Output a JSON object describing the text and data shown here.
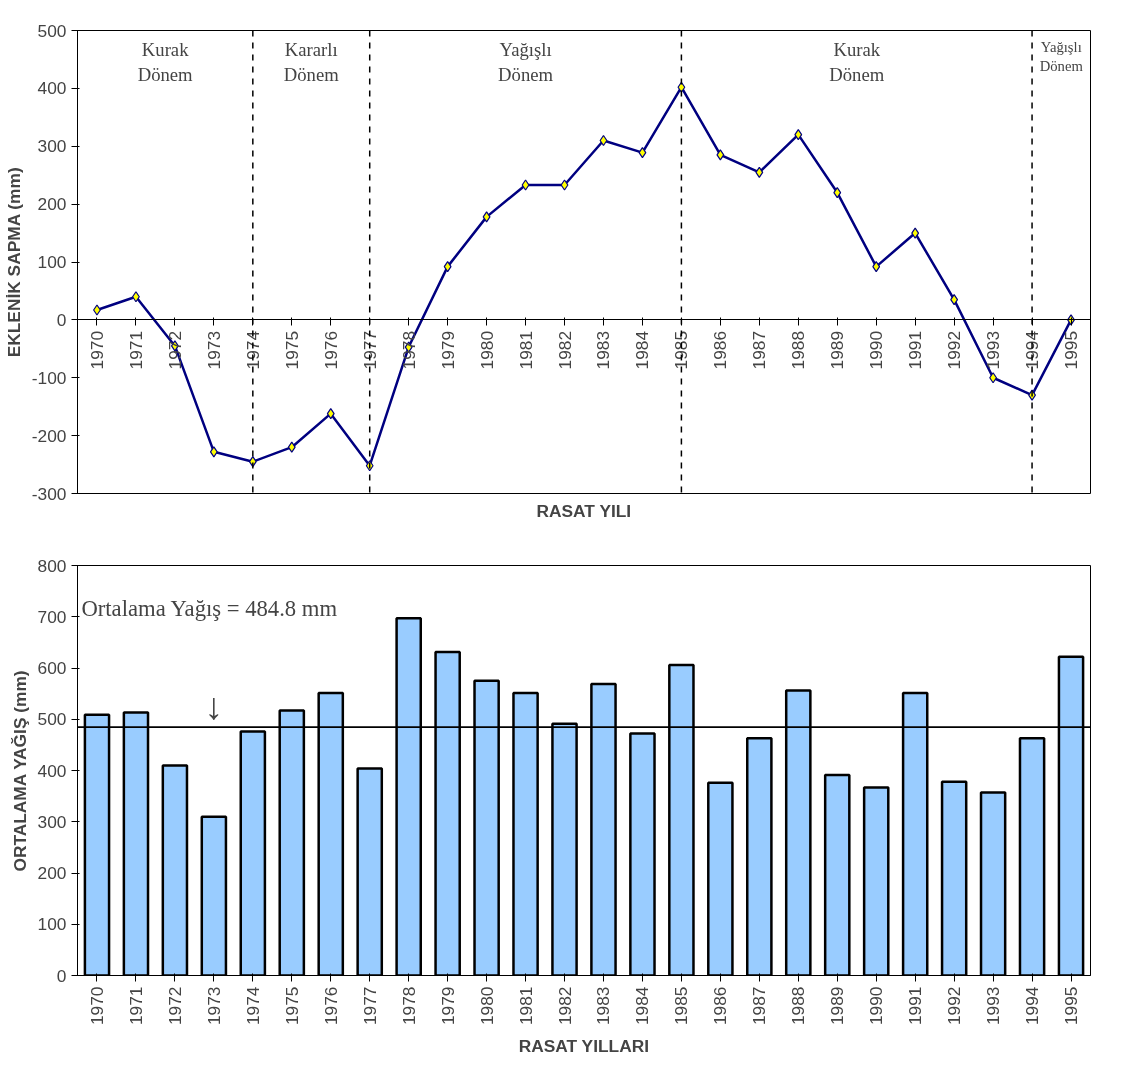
{
  "chart_data": [
    {
      "type": "line",
      "xlabel": "RASAT YILI",
      "ylabel": "EKLENİK SAPMA (mm)",
      "categories": [
        "1970",
        "1971",
        "1972",
        "1973",
        "1974",
        "1975",
        "1976",
        "1977",
        "1978",
        "1979",
        "1980",
        "1981",
        "1982",
        "1983",
        "1984",
        "1985",
        "1986",
        "1987",
        "1988",
        "1989",
        "1990",
        "1991",
        "1992",
        "1993",
        "1994",
        "1995"
      ],
      "series": [
        {
          "color": "#000080",
          "values": [
            17,
            40,
            -45,
            -228,
            -245,
            -220,
            -162,
            -252,
            -47,
            92,
            178,
            233,
            233,
            310,
            289,
            402,
            285,
            255,
            320,
            220,
            92,
            150,
            35,
            -100,
            -130,
            0
          ]
        }
      ],
      "marker": "diamond",
      "line_style": "solid",
      "ylim": [
        -300,
        500
      ],
      "yticks": [
        -300,
        -200,
        -100,
        0,
        100,
        200,
        300,
        400,
        500
      ],
      "grid": false,
      "ref_lines": [
        {
          "axis": "x",
          "value": "1974",
          "line_style": "dashed"
        },
        {
          "axis": "x",
          "value": "1977",
          "line_style": "dashed"
        },
        {
          "axis": "x",
          "value": "1985",
          "line_style": "dashed"
        },
        {
          "axis": "x",
          "value": "1994",
          "line_style": "dashed"
        }
      ],
      "annotations": [
        "Kurak\nDönem",
        "Kararlı\nDönem",
        "Yağışlı\nDönem",
        "Kurak\nDönem",
        "Yağışlı\nDönem"
      ]
    },
    {
      "type": "bar",
      "xlabel": "RASAT YILLARI",
      "ylabel": "ORTALAMA YAĞIŞ (mm)",
      "categories": [
        "1970",
        "1971",
        "1972",
        "1973",
        "1974",
        "1975",
        "1976",
        "1977",
        "1978",
        "1979",
        "1980",
        "1981",
        "1982",
        "1983",
        "1984",
        "1985",
        "1986",
        "1987",
        "1988",
        "1989",
        "1990",
        "1991",
        "1992",
        "1993",
        "1994",
        "1995"
      ],
      "series": [
        {
          "color": "#99ccff",
          "values": [
            509,
            513,
            410,
            310,
            476,
            517,
            551,
            404,
            697,
            631,
            575,
            551,
            491,
            569,
            472,
            606,
            376,
            463,
            556,
            391,
            367,
            551,
            378,
            357,
            463,
            622
          ]
        }
      ],
      "ylim": [
        0,
        800
      ],
      "yticks": [
        0,
        100,
        200,
        300,
        400,
        500,
        600,
        700,
        800
      ],
      "grid": false,
      "ref_lines": [
        {
          "axis": "y",
          "value": 484.8,
          "line_style": "solid"
        }
      ],
      "annotations": [
        "Ortalama Yağış = 484.8 mm",
        "↓"
      ]
    }
  ]
}
